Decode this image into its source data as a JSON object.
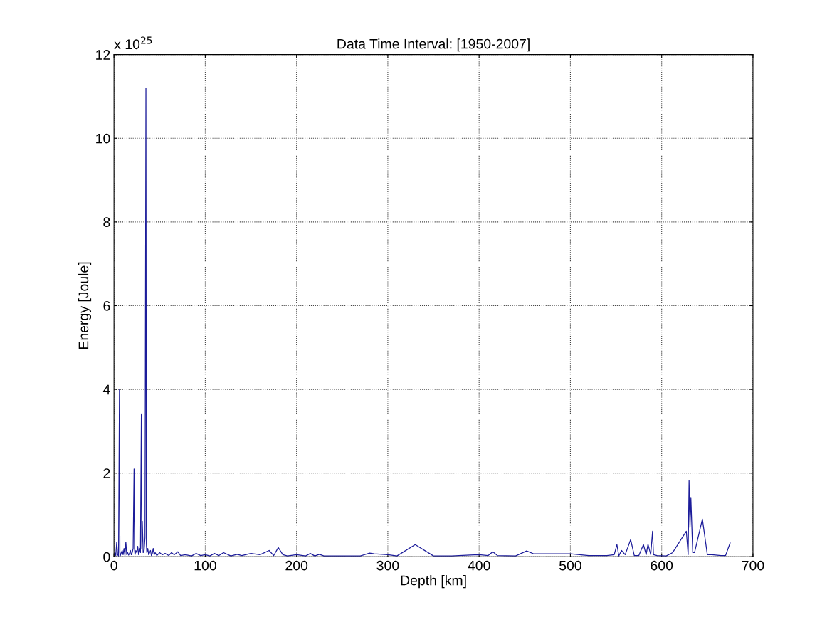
{
  "chart_data": {
    "type": "line",
    "title": "Data Time Interval: [1950-2007]",
    "xlabel": "Depth [km]",
    "ylabel": "Energy [Joule]",
    "annotations": [
      "x 10$^{25}$"
    ],
    "series": [
      {
        "color": "#1c1c9a",
        "x": [
          0,
          1,
          2,
          3,
          4,
          5,
          6,
          6.5,
          7,
          8,
          9,
          10,
          11,
          12,
          13,
          14,
          15,
          16,
          17,
          18,
          19,
          20,
          21,
          22,
          22.5,
          23,
          24,
          25,
          26,
          27,
          28,
          29,
          30,
          30.5,
          31,
          32,
          33,
          34,
          35,
          35.5,
          36,
          37,
          38,
          39,
          40,
          41,
          42,
          43,
          44,
          45,
          47,
          50,
          53,
          56,
          60,
          63,
          66,
          70,
          73,
          78,
          85,
          90,
          95,
          100,
          105,
          110,
          115,
          120,
          128,
          135,
          140,
          150,
          160,
          170,
          175,
          180,
          185,
          190,
          200,
          210,
          215,
          220,
          225,
          230,
          240,
          260,
          270,
          280,
          285,
          300,
          310,
          330,
          350,
          370,
          390,
          400,
          410,
          415,
          420,
          440,
          452,
          460,
          480,
          500,
          520,
          540,
          548,
          551,
          553,
          556,
          560,
          566,
          570,
          575,
          580,
          583,
          585,
          588,
          590,
          591,
          595,
          605,
          612,
          627,
          629,
          630,
          631,
          632,
          634,
          636,
          644.6,
          650,
          655,
          665,
          670,
          675
        ],
        "values": [
          0.05,
          0.1,
          0.03,
          0.35,
          0.05,
          0.02,
          4.0,
          0.1,
          0.03,
          0.1,
          0.15,
          0.05,
          0.2,
          0.03,
          0.35,
          0.05,
          0.1,
          0.04,
          0.08,
          0.15,
          0.05,
          0.1,
          0.2,
          2.1,
          0.2,
          0.05,
          0.15,
          0.1,
          0.25,
          0.05,
          0.2,
          0.1,
          3.4,
          0.2,
          0.85,
          0.1,
          0.15,
          0.46,
          11.2,
          0.3,
          0.1,
          0.2,
          0.05,
          0.1,
          0.15,
          0.03,
          0.08,
          0.2,
          0.05,
          0.1,
          0.03,
          0.1,
          0.05,
          0.08,
          0.03,
          0.1,
          0.05,
          0.12,
          0.03,
          0.05,
          0.02,
          0.08,
          0.03,
          0.05,
          0.02,
          0.08,
          0.03,
          0.1,
          0.02,
          0.06,
          0.03,
          0.08,
          0.05,
          0.15,
          0.03,
          0.22,
          0.05,
          0.02,
          0.05,
          0.02,
          0.08,
          0.02,
          0.06,
          0.02,
          0.02,
          0.02,
          0.02,
          0.09,
          0.07,
          0.05,
          0.02,
          0.29,
          0.02,
          0.02,
          0.04,
          0.05,
          0.03,
          0.12,
          0.03,
          0.02,
          0.14,
          0.07,
          0.07,
          0.07,
          0.03,
          0.03,
          0.05,
          0.29,
          0.02,
          0.15,
          0.05,
          0.41,
          0.03,
          0.03,
          0.29,
          0.05,
          0.3,
          0.05,
          0.61,
          0.05,
          0.03,
          0.02,
          0.1,
          0.61,
          0.05,
          1.82,
          0.7,
          1.4,
          0.1,
          0.1,
          0.9,
          0.05,
          0.05,
          0.03,
          0.03,
          0.33
        ]
      }
    ],
    "xlim": [
      0,
      700
    ],
    "xticks": [
      0,
      100,
      200,
      300,
      400,
      500,
      600,
      700
    ],
    "ylim": [
      0,
      12
    ],
    "yticks": [
      0,
      2,
      4,
      6,
      8,
      10,
      12
    ],
    "grid": true,
    "line_style": "solid",
    "marker": "none"
  }
}
